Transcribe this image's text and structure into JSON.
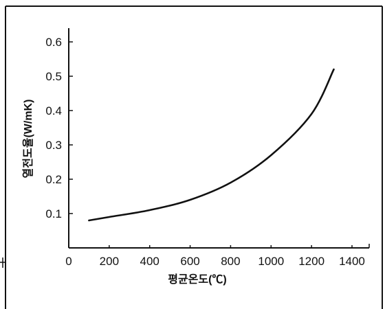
{
  "chart_data": {
    "type": "line",
    "title": "",
    "xlabel": "평균온도(℃)",
    "ylabel": "열전도율(W/mK)",
    "x": [
      100,
      200,
      400,
      600,
      800,
      1000,
      1200,
      1310
    ],
    "series": [
      {
        "values": [
          0.08,
          0.09,
          0.11,
          0.14,
          0.19,
          0.27,
          0.39,
          0.52
        ],
        "color": "#111111"
      }
    ],
    "xlim": [
      0,
      1485
    ],
    "ylim": [
      0,
      0.64
    ],
    "xticks": [
      0,
      200,
      400,
      600,
      800,
      1000,
      1200,
      1400
    ],
    "yticks": [
      0.1,
      0.2,
      0.3,
      0.4,
      0.5,
      0.6
    ],
    "grid": false
  },
  "colors": {
    "ink": "#111111",
    "background": "#ffffff"
  }
}
